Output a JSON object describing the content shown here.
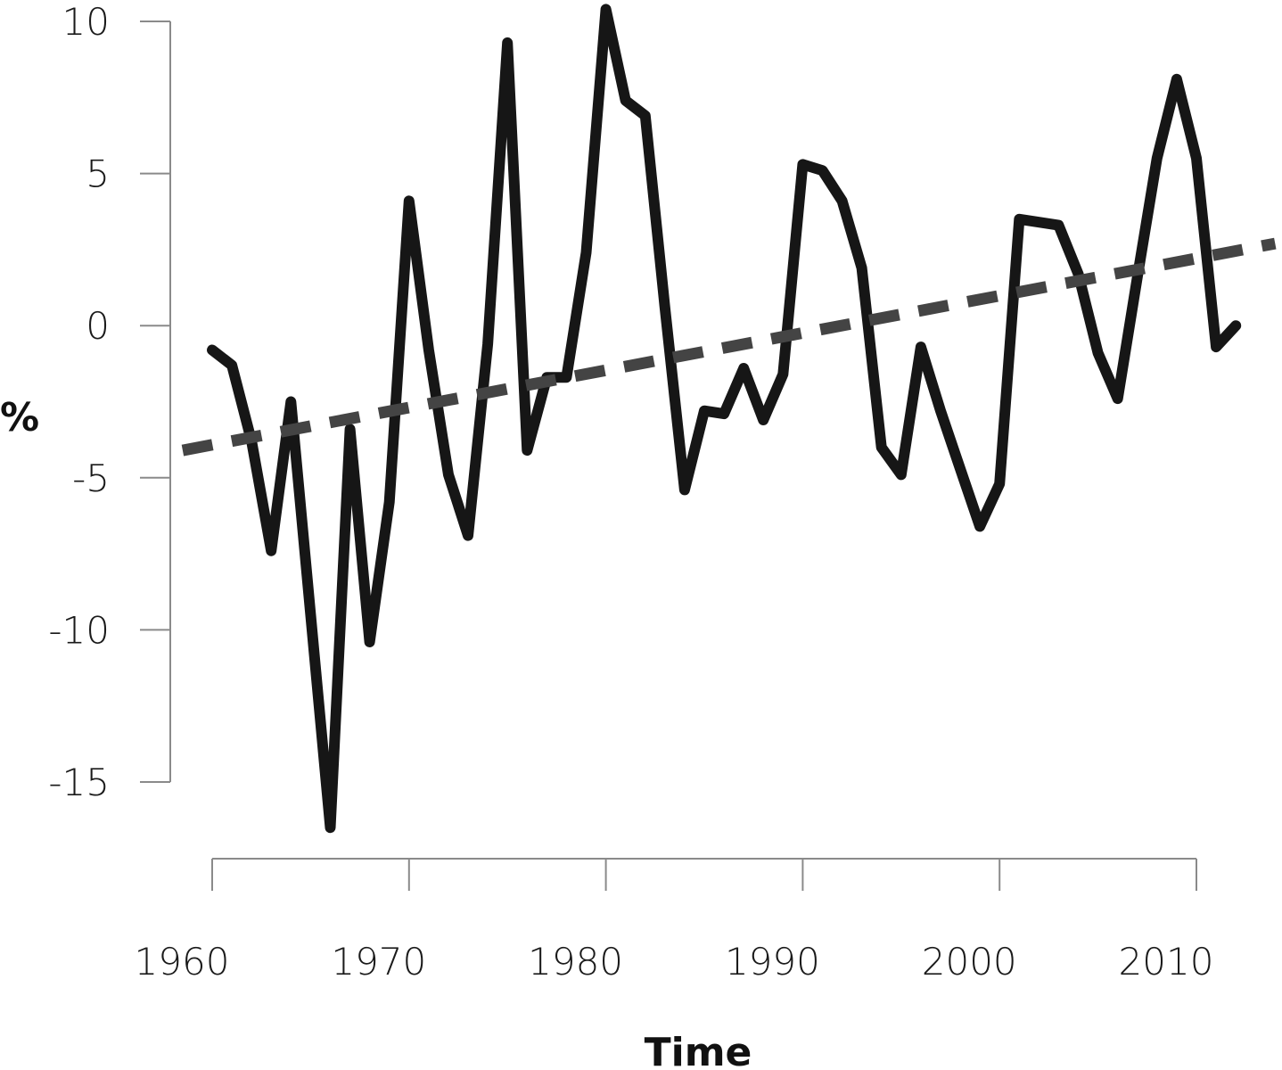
{
  "chart_data": {
    "type": "line",
    "title": "",
    "xlabel": "Time",
    "ylabel": "%",
    "xlim": [
      1960,
      2010
    ],
    "ylim": [
      -15,
      10
    ],
    "x_ticks": [
      "1960",
      "1970",
      "1980",
      "1990",
      "2000",
      "2010"
    ],
    "y_ticks": [
      "10",
      "5",
      "0",
      "-5",
      "-10",
      "-15"
    ],
    "grid": false,
    "legend": "none",
    "series": [
      {
        "style": "solid",
        "color": "#161616",
        "x": [
          1960,
          1961,
          1962,
          1963,
          1964,
          1965,
          1966,
          1967,
          1968,
          1969,
          1970,
          1971,
          1972,
          1973,
          1974,
          1975,
          1976,
          1977,
          1978,
          1979,
          1980,
          1981,
          1982,
          1983,
          1984,
          1985,
          1986,
          1987,
          1988,
          1989,
          1990,
          1991,
          1992,
          1993,
          1994,
          1995,
          1996,
          1997,
          1998,
          1999,
          2000,
          2001,
          2002,
          2003,
          2004,
          2005,
          2006,
          2007,
          2008,
          2009,
          2010,
          2011,
          2012
        ],
        "values": [
          -0.8,
          -1.3,
          -3.8,
          -7.4,
          -2.5,
          -9.5,
          -16.5,
          -3.4,
          -10.4,
          -5.8,
          4.1,
          -0.8,
          -4.9,
          -6.9,
          -0.6,
          9.3,
          -4.1,
          -1.7,
          -1.7,
          2.4,
          10.4,
          7.4,
          6.9,
          0.6,
          -5.4,
          -2.8,
          -2.9,
          -1.4,
          -3.1,
          -1.6,
          5.3,
          5.1,
          4.1,
          1.9,
          -4.0,
          -4.9,
          -0.7,
          -2.8,
          -4.7,
          -6.6,
          -5.2,
          3.5,
          3.4,
          3.3,
          1.7,
          -0.9,
          -2.4,
          1.6,
          5.5,
          8.1,
          5.5,
          -0.7,
          0.0
        ]
      },
      {
        "style": "dashed",
        "color": "#444444",
        "x": [
          1958.5,
          2014
        ],
        "values": [
          -4.1,
          2.7
        ]
      }
    ]
  }
}
